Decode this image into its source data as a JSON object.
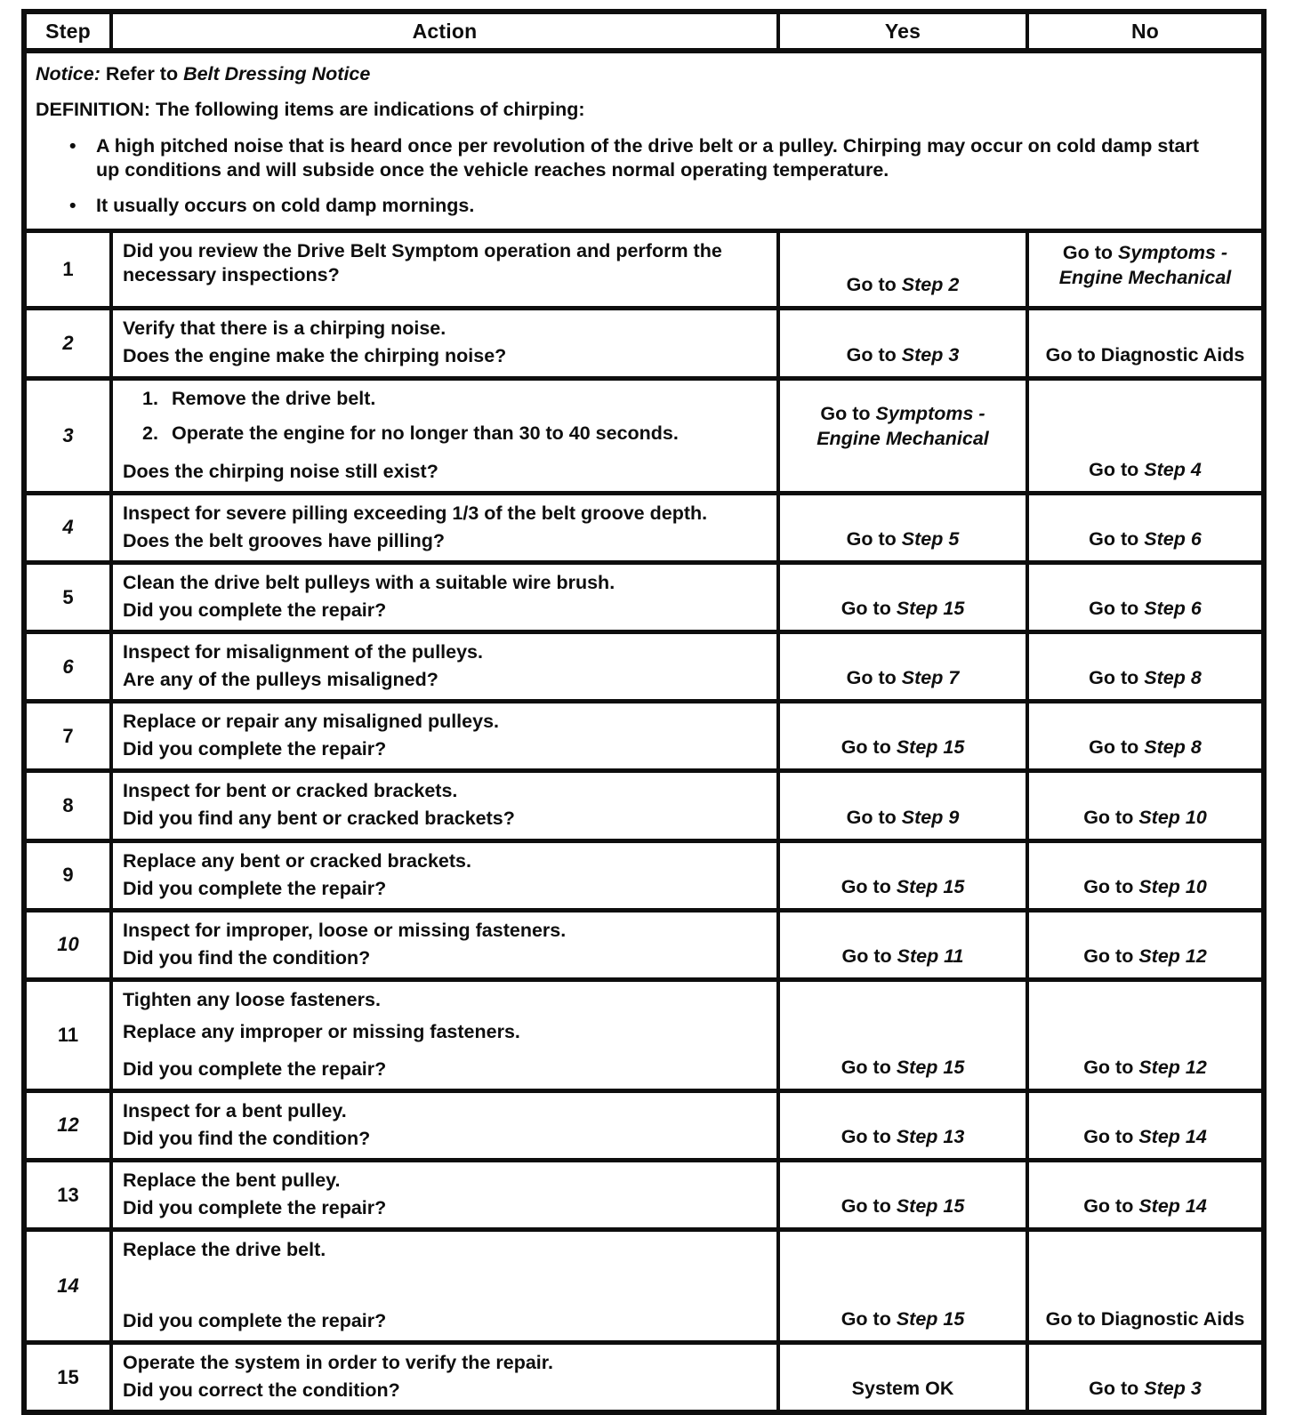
{
  "header": {
    "step": "Step",
    "action": "Action",
    "yes": "Yes",
    "no": "No"
  },
  "notice": {
    "label": "Notice:",
    "refer_text": " Refer to ",
    "reference": "Belt Dressing Notice",
    "definition": "DEFINITION: The following items are indications of chirping:",
    "bullet_icon": "•",
    "bullets": [
      "A high pitched noise that is heard once per revolution of the drive belt or a pulley. Chirping may occur on cold damp start up conditions and will subside once the vehicle reaches normal operating temperature.",
      "It usually occurs on cold damp mornings."
    ]
  },
  "rows": [
    {
      "step": "1",
      "step_italic": false,
      "lines": [
        "Did you review the Drive Belt Symptom operation and perform the necessary inspections?"
      ],
      "numbered": [],
      "question": "",
      "yes": {
        "align": "bottom",
        "segments": [
          {
            "t": "Go to ",
            "i": false
          },
          {
            "t": "Step 2",
            "i": true
          }
        ]
      },
      "no": {
        "align": "top",
        "segments": [
          {
            "t": "Go to ",
            "i": false
          },
          {
            "t": "Symptoms -",
            "i": true,
            "br": true
          },
          {
            "t": "Engine Mechanical",
            "i": true
          }
        ]
      }
    },
    {
      "step": "2",
      "step_italic": true,
      "lines": [
        "Verify that there is a chirping noise."
      ],
      "numbered": [],
      "question": "Does the engine make the chirping noise?",
      "yes": {
        "align": "bottom",
        "segments": [
          {
            "t": "Go to ",
            "i": false
          },
          {
            "t": "Step 3",
            "i": true
          }
        ]
      },
      "no": {
        "align": "bottom",
        "segments": [
          {
            "t": "Go to Diagnostic Aids",
            "i": false
          }
        ]
      }
    },
    {
      "step": "3",
      "step_italic": true,
      "lines": [],
      "numbered": [
        {
          "n": "1.",
          "t": "Remove the drive belt."
        },
        {
          "n": "2.",
          "t": "Operate the engine for no longer than 30 to 40 seconds."
        }
      ],
      "question": "Does the chirping noise still exist?",
      "yes": {
        "align": "middle",
        "segments": [
          {
            "t": "Go to ",
            "i": false
          },
          {
            "t": "Symptoms -",
            "i": true,
            "br": true
          },
          {
            "t": "Engine Mechanical",
            "i": true
          }
        ]
      },
      "no": {
        "align": "bottom",
        "segments": [
          {
            "t": "Go to ",
            "i": false
          },
          {
            "t": "Step 4",
            "i": true
          }
        ]
      }
    },
    {
      "step": "4",
      "step_italic": true,
      "lines": [
        "Inspect for severe pilling exceeding 1/3 of the belt groove depth."
      ],
      "numbered": [],
      "question": "Does the belt grooves have pilling?",
      "yes": {
        "align": "bottom",
        "segments": [
          {
            "t": "Go to ",
            "i": false
          },
          {
            "t": "Step 5",
            "i": true
          }
        ]
      },
      "no": {
        "align": "bottom",
        "segments": [
          {
            "t": "Go to ",
            "i": false
          },
          {
            "t": "Step 6",
            "i": true
          }
        ]
      }
    },
    {
      "step": "5",
      "step_italic": false,
      "lines": [
        "Clean the drive belt pulleys with a suitable wire brush."
      ],
      "numbered": [],
      "question": "Did you complete the repair?",
      "yes": {
        "align": "bottom",
        "segments": [
          {
            "t": "Go to ",
            "i": false
          },
          {
            "t": "Step 15",
            "i": true
          }
        ]
      },
      "no": {
        "align": "bottom",
        "segments": [
          {
            "t": "Go to ",
            "i": false
          },
          {
            "t": "Step 6",
            "i": true
          }
        ]
      }
    },
    {
      "step": "6",
      "step_italic": true,
      "lines": [
        "Inspect for misalignment of the pulleys."
      ],
      "numbered": [],
      "question": "Are any of the pulleys misaligned?",
      "yes": {
        "align": "bottom",
        "segments": [
          {
            "t": "Go to ",
            "i": false
          },
          {
            "t": "Step 7",
            "i": true
          }
        ]
      },
      "no": {
        "align": "bottom",
        "segments": [
          {
            "t": "Go to ",
            "i": false
          },
          {
            "t": "Step 8",
            "i": true
          }
        ]
      }
    },
    {
      "step": "7",
      "step_italic": false,
      "lines": [
        "Replace or repair any misaligned pulleys."
      ],
      "numbered": [],
      "question": "Did you complete the repair?",
      "yes": {
        "align": "bottom",
        "segments": [
          {
            "t": "Go to ",
            "i": false
          },
          {
            "t": "Step 15",
            "i": true
          }
        ]
      },
      "no": {
        "align": "bottom",
        "segments": [
          {
            "t": "Go to ",
            "i": false
          },
          {
            "t": "Step 8",
            "i": true
          }
        ]
      }
    },
    {
      "step": "8",
      "step_italic": false,
      "lines": [
        "Inspect for bent or cracked brackets."
      ],
      "numbered": [],
      "question": "Did you find any bent or cracked brackets?",
      "yes": {
        "align": "bottom",
        "segments": [
          {
            "t": "Go to ",
            "i": false
          },
          {
            "t": "Step 9",
            "i": true
          }
        ]
      },
      "no": {
        "align": "bottom",
        "segments": [
          {
            "t": "Go to ",
            "i": false
          },
          {
            "t": "Step 10",
            "i": true
          }
        ]
      }
    },
    {
      "step": "9",
      "step_italic": false,
      "lines": [
        "Replace any bent or cracked brackets."
      ],
      "numbered": [],
      "question": "Did you complete the repair?",
      "yes": {
        "align": "bottom",
        "segments": [
          {
            "t": "Go to ",
            "i": false
          },
          {
            "t": "Step 15",
            "i": true
          }
        ]
      },
      "no": {
        "align": "bottom",
        "segments": [
          {
            "t": "Go to ",
            "i": false
          },
          {
            "t": "Step 10",
            "i": true
          }
        ]
      }
    },
    {
      "step": "10",
      "step_italic": true,
      "lines": [
        "Inspect for improper, loose or missing fasteners."
      ],
      "numbered": [],
      "question": "Did you find the condition?",
      "yes": {
        "align": "bottom",
        "segments": [
          {
            "t": "Go to ",
            "i": false
          },
          {
            "t": "Step 11",
            "i": true
          }
        ]
      },
      "no": {
        "align": "bottom",
        "segments": [
          {
            "t": "Go to ",
            "i": false
          },
          {
            "t": "Step 12",
            "i": true
          }
        ]
      }
    },
    {
      "step": "11",
      "step_italic": false,
      "lines": [
        "Tighten any loose fasteners.",
        "Replace any improper or missing fasteners."
      ],
      "numbered": [],
      "question": "Did you complete the repair?",
      "yes": {
        "align": "bottom",
        "segments": [
          {
            "t": "Go to ",
            "i": false
          },
          {
            "t": "Step 15",
            "i": true
          }
        ]
      },
      "no": {
        "align": "bottom",
        "segments": [
          {
            "t": "Go to ",
            "i": false
          },
          {
            "t": "Step 12",
            "i": true
          }
        ]
      }
    },
    {
      "step": "12",
      "step_italic": true,
      "lines": [
        "Inspect for a bent pulley."
      ],
      "numbered": [],
      "question": "Did you find the condition?",
      "yes": {
        "align": "bottom",
        "segments": [
          {
            "t": "Go to ",
            "i": false
          },
          {
            "t": "Step 13",
            "i": true
          }
        ]
      },
      "no": {
        "align": "bottom",
        "segments": [
          {
            "t": "Go to ",
            "i": false
          },
          {
            "t": "Step 14",
            "i": true
          }
        ]
      }
    },
    {
      "step": "13",
      "step_italic": false,
      "lines": [
        "Replace the bent pulley."
      ],
      "numbered": [],
      "question": "Did you complete the repair?",
      "yes": {
        "align": "bottom",
        "segments": [
          {
            "t": "Go to ",
            "i": false
          },
          {
            "t": "Step 15",
            "i": true
          }
        ]
      },
      "no": {
        "align": "bottom",
        "segments": [
          {
            "t": "Go to ",
            "i": false
          },
          {
            "t": "Step 14",
            "i": true
          }
        ]
      }
    },
    {
      "step": "14",
      "step_italic": true,
      "lines": [
        "Replace the drive belt."
      ],
      "numbered": [],
      "question": "Did you complete the repair?",
      "yes": {
        "align": "bottom",
        "segments": [
          {
            "t": "Go to ",
            "i": false
          },
          {
            "t": "Step 15",
            "i": true
          }
        ]
      },
      "no": {
        "align": "bottom",
        "segments": [
          {
            "t": "Go to Diagnostic Aids",
            "i": false
          }
        ]
      }
    },
    {
      "step": "15",
      "step_italic": false,
      "lines": [
        "Operate the system in order to verify the repair."
      ],
      "numbered": [],
      "question": "Did you correct the condition?",
      "yes": {
        "align": "bottom",
        "segments": [
          {
            "t": "System OK",
            "i": false
          }
        ]
      },
      "no": {
        "align": "bottom",
        "segments": [
          {
            "t": "Go to ",
            "i": false
          },
          {
            "t": "Step 3",
            "i": true
          }
        ]
      }
    }
  ]
}
